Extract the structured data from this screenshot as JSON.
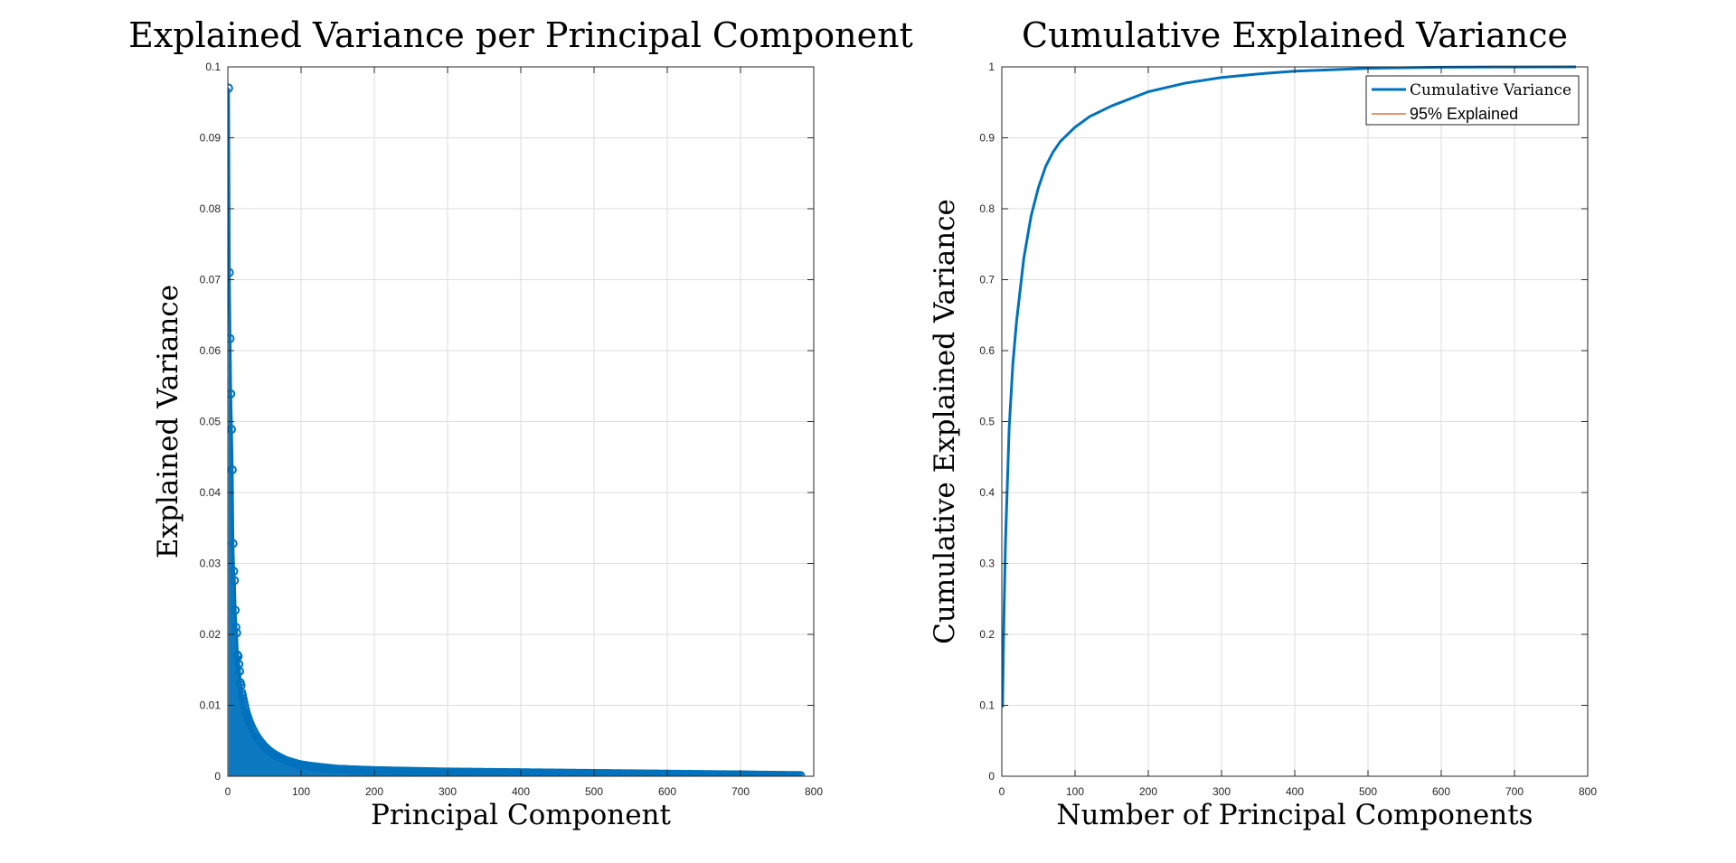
{
  "chart_data": [
    {
      "type": "line",
      "title": "Explained Variance per Principal Component",
      "xlabel": "Principal Component",
      "ylabel": "Explained Variance",
      "xlim": [
        0,
        800
      ],
      "ylim": [
        0,
        0.1
      ],
      "xticks": [
        "0",
        "100",
        "200",
        "300",
        "400",
        "500",
        "600",
        "700",
        "800"
      ],
      "yticks": [
        "0",
        "0.01",
        "0.02",
        "0.03",
        "0.04",
        "0.05",
        "0.06",
        "0.07",
        "0.08",
        "0.09",
        "0.1"
      ],
      "grid": true,
      "marker": "circle",
      "n_components": 784,
      "series": [
        {
          "color": "#0072BD",
          "x": [
            1,
            2,
            3,
            4,
            5,
            6,
            7,
            8,
            9,
            10,
            11,
            12,
            13,
            14,
            15,
            16,
            17,
            18,
            19,
            20,
            25,
            30,
            40,
            50,
            60,
            80,
            100,
            150,
            200,
            300,
            400,
            500,
            600,
            700,
            784
          ],
          "y": [
            0.097,
            0.071,
            0.0617,
            0.0539,
            0.0489,
            0.0432,
            0.0328,
            0.0289,
            0.0276,
            0.0234,
            0.021,
            0.0202,
            0.0171,
            0.0169,
            0.0158,
            0.0148,
            0.0132,
            0.0128,
            0.0118,
            0.0114,
            0.009,
            0.0075,
            0.0055,
            0.0042,
            0.0033,
            0.0022,
            0.0016,
            0.001,
            0.0008,
            0.0006,
            0.0005,
            0.0004,
            0.0003,
            0.0002,
            0.0001
          ]
        }
      ]
    },
    {
      "type": "line",
      "title": "Cumulative Explained Variance",
      "xlabel": "Number of Principal Components",
      "ylabel": "Cumulative Explained Variance",
      "xlim": [
        0,
        800
      ],
      "ylim": [
        0,
        1
      ],
      "xticks": [
        "0",
        "100",
        "200",
        "300",
        "400",
        "500",
        "600",
        "700",
        "800"
      ],
      "yticks": [
        "0",
        "0.1",
        "0.2",
        "0.3",
        "0.4",
        "0.5",
        "0.6",
        "0.7",
        "0.8",
        "0.9",
        "1"
      ],
      "grid": true,
      "legend_position": "top-right",
      "series": [
        {
          "name": "Cumulative Variance",
          "color": "#0072BD",
          "x": [
            1,
            2,
            3,
            5,
            10,
            15,
            20,
            30,
            40,
            50,
            60,
            70,
            80,
            100,
            120,
            150,
            200,
            250,
            300,
            350,
            400,
            500,
            600,
            700,
            784
          ],
          "y": [
            0.097,
            0.168,
            0.23,
            0.33,
            0.49,
            0.58,
            0.64,
            0.73,
            0.79,
            0.83,
            0.86,
            0.88,
            0.895,
            0.915,
            0.93,
            0.945,
            0.965,
            0.977,
            0.985,
            0.99,
            0.994,
            0.998,
            0.9995,
            0.9999,
            1.0
          ]
        },
        {
          "name": "95% Explained",
          "color": "#D95319",
          "x": [],
          "y": []
        }
      ]
    }
  ]
}
